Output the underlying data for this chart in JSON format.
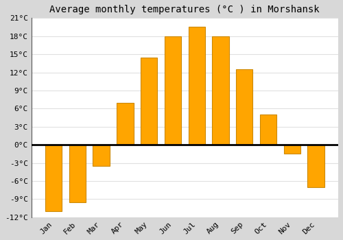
{
  "title": "Average monthly temperatures (°C ) in Morshansk",
  "months": [
    "Jan",
    "Feb",
    "Mar",
    "Apr",
    "May",
    "Jun",
    "Jul",
    "Aug",
    "Sep",
    "Oct",
    "Nov",
    "Dec"
  ],
  "values": [
    -11,
    -9.5,
    -3.5,
    7,
    14.5,
    18,
    19.5,
    18,
    12.5,
    5,
    -1.5,
    -7
  ],
  "bar_color": "#FFA500",
  "bar_edge_color": "#CC8800",
  "ylim": [
    -12,
    21
  ],
  "yticks": [
    -12,
    -9,
    -6,
    -3,
    0,
    3,
    6,
    9,
    12,
    15,
    18,
    21
  ],
  "ytick_labels": [
    "-12°C",
    "-9°C",
    "-6°C",
    "-3°C",
    "0°C",
    "3°C",
    "6°C",
    "9°C",
    "12°C",
    "15°C",
    "18°C",
    "21°C"
  ],
  "fig_background_color": "#d8d8d8",
  "plot_background_color": "#ffffff",
  "grid_color": "#e0e0e0",
  "zero_line_color": "#000000",
  "left_spine_color": "#555555",
  "title_fontsize": 10,
  "tick_fontsize": 8,
  "font_family": "monospace",
  "bar_width": 0.7
}
